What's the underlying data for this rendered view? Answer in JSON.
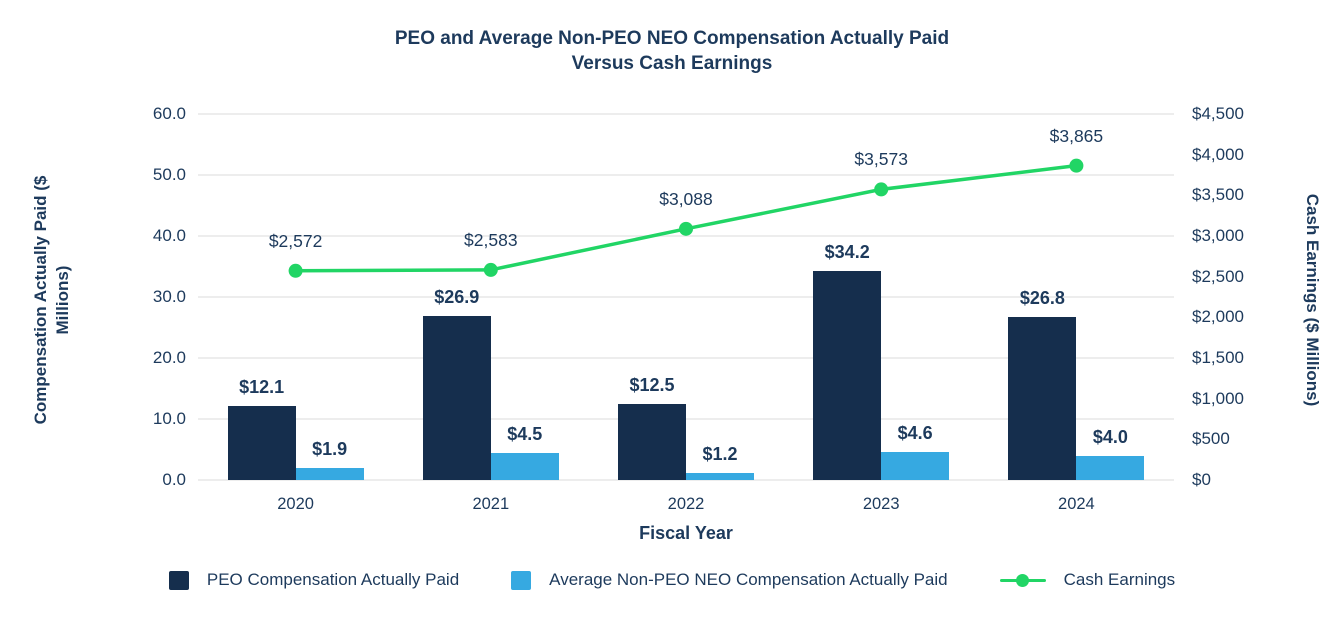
{
  "title": {
    "line1": "PEO and Average Non-PEO NEO Compensation Actually Paid",
    "line2": "Versus Cash Earnings"
  },
  "colors": {
    "text_navy": "#1d3a5c",
    "bar_navy": "#152e4d",
    "bar_blue": "#36a9e1",
    "line_green": "#21d565",
    "gridline": "#ededed",
    "background": "#ffffff"
  },
  "chart_data": {
    "type": "bar",
    "subtype": "grouped-bar-with-line-overlay",
    "title": "PEO and Average Non-PEO NEO Compensation Actually Paid Versus Cash Earnings",
    "categories": [
      "2020",
      "2021",
      "2022",
      "2023",
      "2024"
    ],
    "xlabel": "Fiscal Year",
    "grid": true,
    "legend_position": "bottom",
    "left_axis": {
      "label": "Compensation Actually Paid ($ Millions)",
      "min": 0,
      "max": 60,
      "ticks": [
        "60.0",
        "50.0",
        "40.0",
        "30.0",
        "20.0",
        "10.0",
        "0.0"
      ]
    },
    "right_axis": {
      "label": "Cash Earnings ($ Millions)",
      "min": 0,
      "max": 4500,
      "ticks": [
        "$4,500",
        "$4,000",
        "$3,500",
        "$3,000",
        "$2,500",
        "$2,000",
        "$1,500",
        "$1,000",
        "$500",
        "$0"
      ]
    },
    "series": [
      {
        "name": "PEO Compensation Actually Paid",
        "type": "bar",
        "axis": "left",
        "color": "#152e4d",
        "values": [
          12.1,
          26.9,
          12.5,
          34.2,
          26.8
        ],
        "labels": [
          "$12.1",
          "$26.9",
          "$12.5",
          "$34.2",
          "$26.8"
        ]
      },
      {
        "name": "Average Non-PEO NEO Compensation Actually Paid",
        "type": "bar",
        "axis": "left",
        "color": "#36a9e1",
        "values": [
          1.9,
          4.5,
          1.2,
          4.6,
          4.0
        ],
        "labels": [
          "$1.9",
          "$4.5",
          "$1.2",
          "$4.6",
          "$4.0"
        ]
      },
      {
        "name": "Cash Earnings",
        "type": "line",
        "axis": "right",
        "color": "#21d565",
        "values": [
          2572,
          2583,
          3088,
          3573,
          3865
        ],
        "labels": [
          "$2,572",
          "$2,583",
          "$3,088",
          "$3,573",
          "$3,865"
        ]
      }
    ]
  }
}
